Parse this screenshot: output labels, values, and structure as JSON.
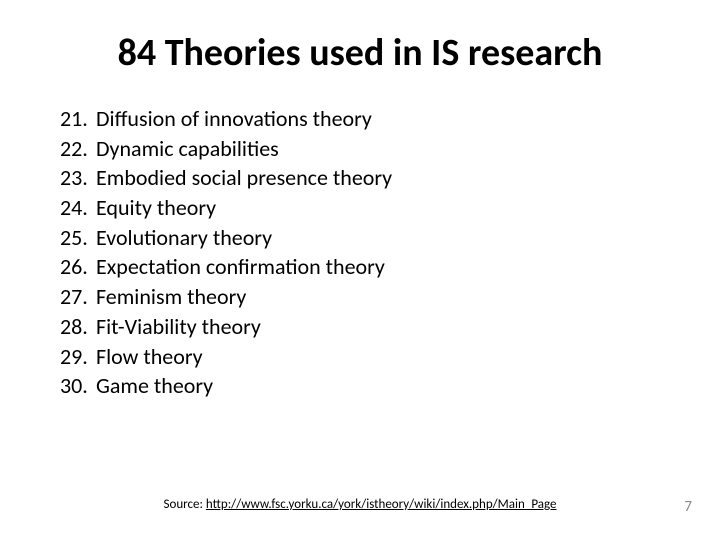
{
  "title": "84 Theories used in IS research",
  "title_fontsize": 38,
  "title_fontweight": 700,
  "list_fontsize": 22,
  "items": [
    {
      "n": "21.",
      "text": "Diffusion of innovations theory"
    },
    {
      "n": "22.",
      "text": "Dynamic capabilities"
    },
    {
      "n": "23.",
      "text": "Embodied social presence theory"
    },
    {
      "n": "24.",
      "text": "Equity theory"
    },
    {
      "n": "25.",
      "text": "Evolutionary theory"
    },
    {
      "n": "26.",
      "text": "Expectation confirmation theory"
    },
    {
      "n": "27.",
      "text": "Feminism theory"
    },
    {
      "n": "28.",
      "text": "Fit-Viability theory"
    },
    {
      "n": "29.",
      "text": "Flow theory"
    },
    {
      "n": "30.",
      "text": "Game theory"
    }
  ],
  "source_prefix": "Source: ",
  "source_url": "http://www.fsc.yorku.ca/york/istheory/wiki/index.php/Main_Page",
  "source_fontsize": 13,
  "page_number": "7",
  "colors": {
    "background": "#ffffff",
    "text": "#000000",
    "pagenum": "#8a8a8a"
  }
}
